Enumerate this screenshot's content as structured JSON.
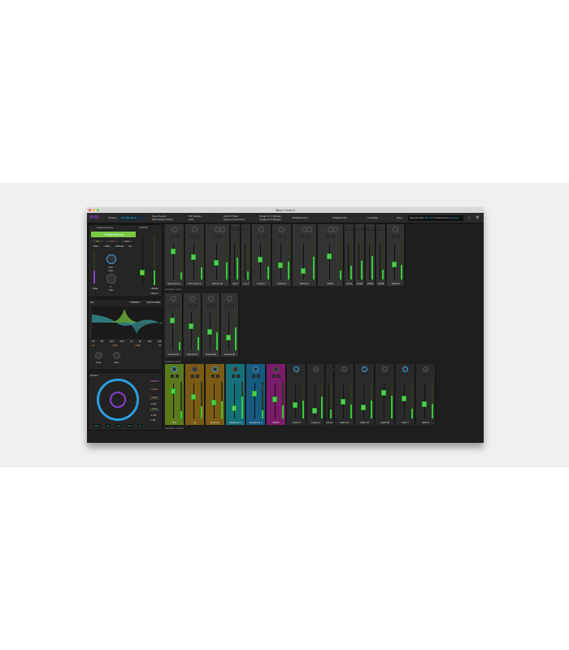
{
  "window": {
    "title": "Mbox Control"
  },
  "toolbar": {
    "logo": "AVID",
    "presets_label": "Presets",
    "preset_value": "Dim Mic Mode",
    "user_presets": [
      "User Presets",
      "Multi Monitor Mode"
    ],
    "dsi": [
      "DSI Bypass",
      "Auto"
    ],
    "avid_fx": [
      "Avid FX Mute",
      "Bypass Ground Lift"
    ],
    "toggle_fx": [
      "Toggle FX 1 Bypass",
      "Toggle FX 2 Bypass"
    ],
    "sel1": "S/S/EXP None",
    "sel2": "S/S/EXP Mix...",
    "sel3": "Loopback",
    "save": "Save",
    "sample_rate_label": "Sample Rate",
    "sample_rate": "48.1 kHz",
    "clock_label": "Clock Source",
    "clock": "Internal",
    "help": "?",
    "accent": "#3ac0d0"
  },
  "left": {
    "tabs": [
      "Channel Focus",
      "Avid FX"
    ],
    "channel_name": "1 MicLine/Inst",
    "row1": [
      "48V",
      "-18",
      "HI-Z"
    ],
    "row2": [
      "PAD",
      "HPF",
      "OPTLIM",
      "Ø"
    ],
    "gain_value": "0.00",
    "gain_label": "Gain",
    "pan_value": "C",
    "pan_label": "Pan",
    "pre": "PRE",
    "mute": "MUTE",
    "solo": "SOLO",
    "eq_label": "EQ",
    "bypass": "BYPASS",
    "eq_same": "EQ TO SAME",
    "eq_freq": [
      "20",
      "50",
      "100",
      "500",
      "1k",
      "5k",
      "10k",
      "20k"
    ],
    "eq_bands": [
      "LF",
      "LMF",
      "HMF",
      "HF"
    ],
    "knob_labels": [
      "Freq",
      "Gain"
    ],
    "monitor_label": "Monitor",
    "monitor_buttons": [
      "MONO",
      "mute",
      "DIM",
      "TALK"
    ],
    "monitor_values": [
      "-6 dB",
      "-1 dB",
      "1 dB"
    ],
    "monitor_sources": [
      "Main",
      "Alt",
      "Alt2",
      "Mix",
      "Hi"
    ],
    "accent": "#7ac943",
    "ring": "#2a9fe0",
    "logo_color": "#8a3fd0"
  },
  "sections": {
    "hardware_input": "Hardware Input",
    "software_input": "Software Input",
    "hardware_output": "Hardware Output"
  },
  "rows": [
    {
      "strips": [
        {
          "name": "MicLine/Inst 1",
          "color": "#333"
        },
        {
          "name": "MicLine/Inst 2",
          "color": "#333"
        },
        {
          "name": "MicLine 3/4",
          "color": "#333"
        },
        {
          "name": "Line 5",
          "color": "#333"
        },
        {
          "name": "Line 6",
          "color": "#333"
        },
        {
          "name": "LineFX 7",
          "color": "#333"
        },
        {
          "name": "LineFX 8",
          "color": "#333"
        },
        {
          "name": "Bluetooth",
          "color": "#333"
        },
        {
          "name": "S/PDIF",
          "color": "#333"
        },
        {
          "name": "AD1/2",
          "color": "#333"
        },
        {
          "name": "AD3/4",
          "color": "#333"
        },
        {
          "name": "AD5/6",
          "color": "#333"
        },
        {
          "name": "AD7/8",
          "color": "#333"
        },
        {
          "name": "Talkback",
          "color": "#333"
        }
      ]
    },
    {
      "strips": [
        {
          "name": "Internal 1/2",
          "color": "#333"
        },
        {
          "name": "Internal 3/4",
          "color": "#333"
        },
        {
          "name": "Internal 5/6",
          "color": "#333"
        },
        {
          "name": "Internal 7/8",
          "color": "#333"
        }
      ]
    },
    {
      "strips": [
        {
          "name": "Mac",
          "color": "#5a7a1c"
        },
        {
          "name": "Alt",
          "color": "#7a5a14"
        },
        {
          "name": "Bluetooth",
          "color": "#7a5a14"
        },
        {
          "name": "Headphone 1",
          "color": "#16707a"
        },
        {
          "name": "Headphone 2",
          "color": "#165a80"
        },
        {
          "name": "S/PDIF",
          "color": "#7a1c6a"
        },
        {
          "name": "LineFX 1",
          "color": "#2a2a2a"
        },
        {
          "name": "LineFX 2",
          "color": "#2a2a2a"
        },
        {
          "name": "Out to Amp",
          "color": "#2a2a2a"
        },
        {
          "name": "ADAT 1/2",
          "color": "#2a2a2a"
        },
        {
          "name": "ADAT 3/4",
          "color": "#2a2a2a"
        },
        {
          "name": "ADAT 5/6",
          "color": "#2a2a2a"
        },
        {
          "name": "ADAT 7",
          "color": "#2a2a2a"
        },
        {
          "name": "ADAT 8",
          "color": "#2a2a2a"
        }
      ]
    }
  ]
}
